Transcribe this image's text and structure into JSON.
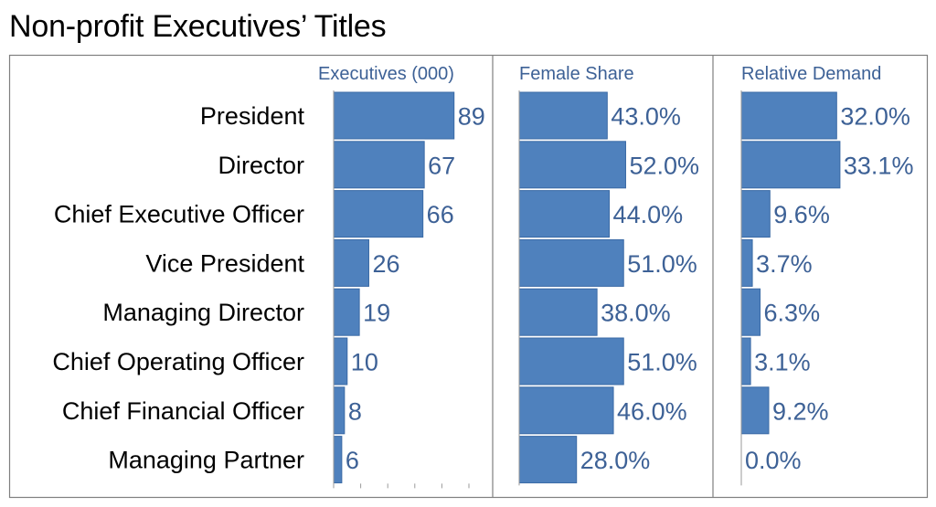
{
  "title": "Non-profit Executives’ Titles",
  "colors": {
    "bar": "#4f81bd",
    "bar_edge": "#3a6aa5",
    "label": "#3d6196",
    "frame": "#7f7f7f",
    "tick": "#9a9a9a"
  },
  "chart_data": {
    "type": "bar",
    "orientation": "horizontal",
    "categories": [
      "President",
      "Director",
      "Chief Executive Officer",
      "Vice President",
      "Managing Director",
      "Chief Operating Officer",
      "Chief Financial Officer",
      "Managing Partner"
    ],
    "series": [
      {
        "name": "Executives (000)",
        "values": [
          89,
          67,
          66,
          26,
          19,
          10,
          8,
          6
        ],
        "labels": [
          "89",
          "67",
          "66",
          "26",
          "19",
          "10",
          "8",
          "6"
        ]
      },
      {
        "name": "Female Share",
        "values": [
          43.0,
          52.0,
          44.0,
          51.0,
          38.0,
          51.0,
          46.0,
          28.0
        ],
        "labels": [
          "43.0%",
          "52.0%",
          "44.0%",
          "51.0%",
          "38.0%",
          "51.0%",
          "46.0%",
          "28.0%"
        ]
      },
      {
        "name": "Relative Demand",
        "values": [
          32.0,
          33.1,
          9.6,
          3.7,
          6.3,
          3.1,
          9.2,
          0.0
        ],
        "labels": [
          "32.0%",
          "33.1%",
          "9.6%",
          "3.7%",
          "6.3%",
          "3.1%",
          "9.2%",
          "0.0%"
        ]
      }
    ]
  }
}
